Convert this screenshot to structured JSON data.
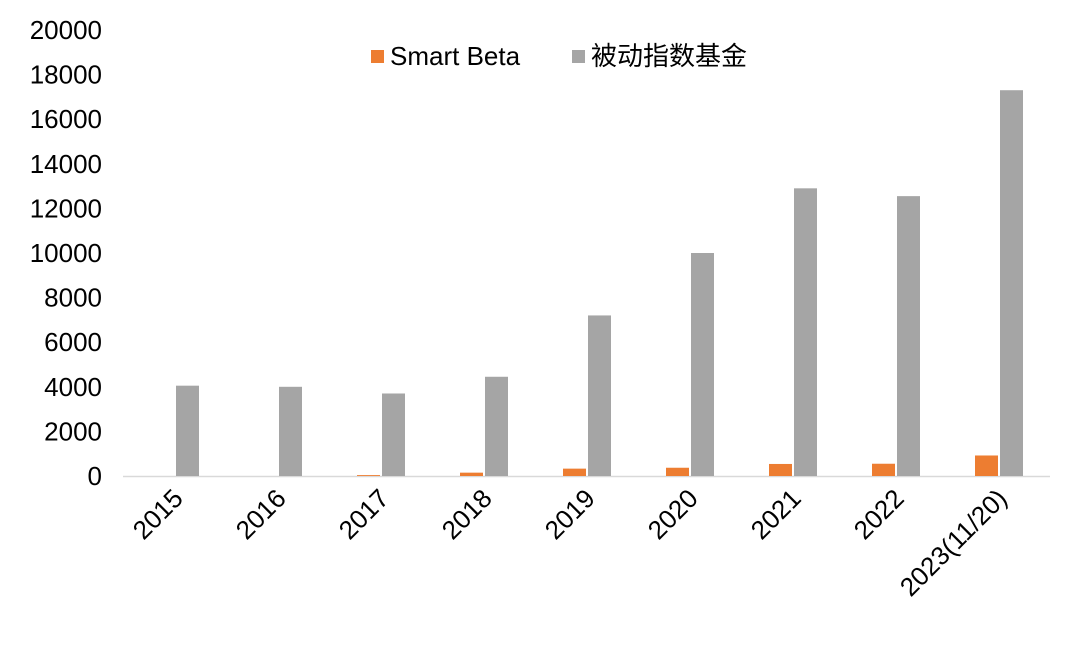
{
  "chart_data": {
    "type": "bar",
    "title": "",
    "xlabel": "",
    "ylabel": "",
    "categories": [
      "2015",
      "2016",
      "2017",
      "2018",
      "2019",
      "2020",
      "2021",
      "2022",
      "2023(11/20)"
    ],
    "series": [
      {
        "name": "Smart Beta",
        "color": "#ED7D31",
        "values": [
          0,
          0,
          40,
          150,
          330,
          370,
          540,
          550,
          920
        ]
      },
      {
        "name": "被动指数基金",
        "color": "#A5A5A5",
        "values": [
          4050,
          4000,
          3700,
          4450,
          7200,
          10000,
          12900,
          12550,
          17300
        ]
      }
    ],
    "ylim": [
      0,
      20000
    ],
    "yticks": [
      0,
      2000,
      4000,
      6000,
      8000,
      10000,
      12000,
      14000,
      16000,
      18000,
      20000
    ],
    "grid": false,
    "legend_position": "top-center"
  }
}
